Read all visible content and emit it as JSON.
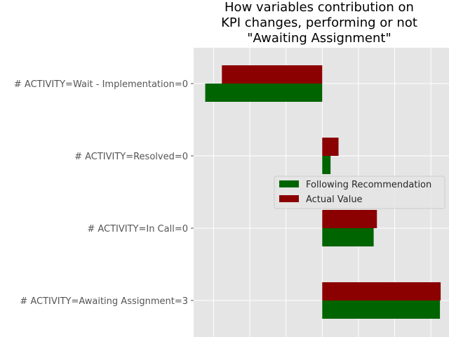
{
  "chart_data": {
    "type": "bar",
    "orientation": "horizontal",
    "title": "How variables contribution on\nKPI changes, performing or not\n\"Awaiting Assignment\"",
    "categories": [
      "# ACTIVITY=Wait - Implementation=0",
      "# ACTIVITY=Resolved=0",
      "# ACTIVITY=In Call=0",
      "# ACTIVITY=Awaiting Assignment=3"
    ],
    "series": [
      {
        "name": "Following Recommendation",
        "color": "#006400",
        "values": [
          -0.0323,
          0.0023,
          0.0142,
          0.0325
        ]
      },
      {
        "name": "Actual Value",
        "color": "#8b0000",
        "values": [
          -0.0277,
          0.0045,
          0.0151,
          0.0327
        ]
      }
    ],
    "xlim": [
      -0.0355,
      0.035
    ],
    "grid": true,
    "legend_position": "center-right",
    "xlabel": "",
    "ylabel": ""
  }
}
